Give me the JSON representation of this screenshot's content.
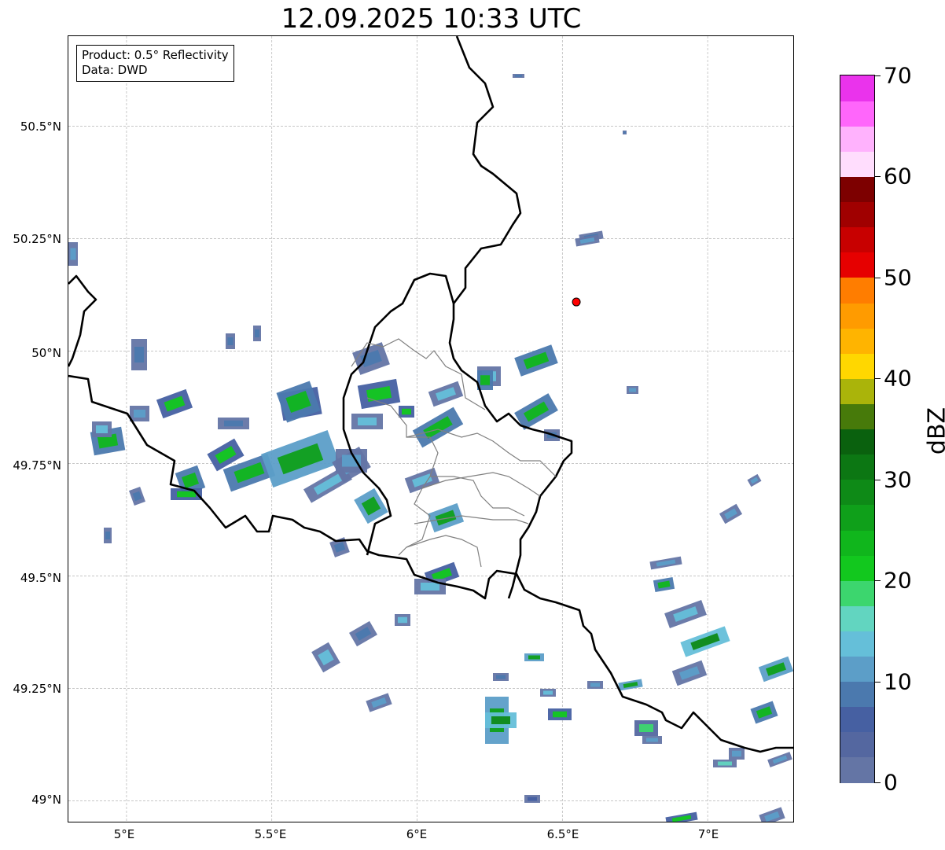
{
  "title": "12.09.2025 10:33 UTC",
  "info_box": {
    "product": "Product: 0.5° Reflectivity",
    "data": "Data: DWD"
  },
  "lat_labels": [
    "50.5°N",
    "50.25°N",
    "50°N",
    "49.75°N",
    "49.5°N",
    "49.25°N",
    "49°N"
  ],
  "lon_labels": [
    "5°E",
    "5.5°E",
    "6°E",
    "6.5°E",
    "7°E"
  ],
  "map": {
    "lon_range": [
      4.8,
      7.3
    ],
    "lat_range": [
      48.95,
      50.7
    ],
    "grid_lons": [
      5.0,
      5.5,
      6.0,
      6.5,
      7.0
    ],
    "grid_lats": [
      49.0,
      49.25,
      49.5,
      49.75,
      50.0,
      50.25,
      50.5
    ],
    "radar_site": {
      "lon": 6.548,
      "lat": 50.109,
      "color": "#ff0000"
    }
  },
  "colorbar": {
    "unit": "dBZ",
    "tick_labels": [
      "0",
      "10",
      "20",
      "30",
      "40",
      "50",
      "60",
      "70"
    ],
    "min": 0,
    "max": 70,
    "step": 2.5,
    "colors": [
      "#6475a5",
      "#5467a0",
      "#4660a2",
      "#4b79ae",
      "#5c9ec8",
      "#65bfd9",
      "#62d5c0",
      "#3cd66e",
      "#12c81e",
      "#10b61c",
      "#0fa01a",
      "#0e8a17",
      "#0c7713",
      "#0a610e",
      "#477a0a",
      "#aab40a",
      "#ffd700",
      "#ffb400",
      "#ff9b00",
      "#ff7d00",
      "#e60000",
      "#c80000",
      "#a00000",
      "#7d0000",
      "#ffddfd",
      "#ffb2fd",
      "#ff66fb",
      "#ea33ec"
    ]
  },
  "colors": {
    "border_major": "#000000",
    "border_minor": "#808080",
    "grid": "#b3b3b3"
  }
}
